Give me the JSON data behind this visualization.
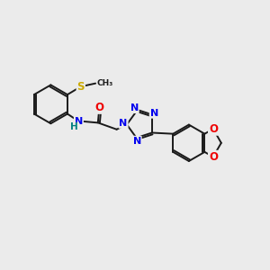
{
  "background_color": "#ebebeb",
  "bond_color": "#1a1a1a",
  "atom_colors": {
    "N": "#0000ee",
    "O": "#ee0000",
    "S": "#ccaa00",
    "H": "#008080",
    "C": "#1a1a1a"
  },
  "figsize": [
    3.0,
    3.0
  ],
  "dpi": 100
}
